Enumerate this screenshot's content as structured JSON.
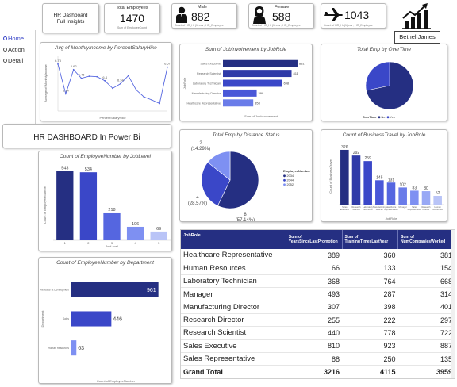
{
  "nav": {
    "items": [
      "Home",
      "Action",
      "Detail"
    ]
  },
  "header": {
    "title_card": {
      "line1": "HR  Dashboard",
      "line2": "Full Insights"
    },
    "total": {
      "label": "Total Employees",
      "value": "1470",
      "caption": "Sum of EmployeeCount"
    },
    "male": {
      "label": "Male",
      "value": "882",
      "caption": "Count of HR_Hr (1).csv ; HR_Employee"
    },
    "female": {
      "label": "Female",
      "value": "588",
      "caption": "Count of HR_Hr (1).csv ; HR_Employee"
    },
    "travel": {
      "value": "1043",
      "caption": "Count of HR_Hr (1).csv ; HR_Employee"
    },
    "author": "Bethel James",
    "banner": "HR  DASHBOARD In Power Bi"
  },
  "colors": {
    "navy": "#252f82",
    "blue": "#3a47c8",
    "mid": "#5566e0",
    "light": "#7e90f2",
    "pale": "#b9c4f7",
    "table_header": "#252f82"
  },
  "chart_data": [
    {
      "id": "income",
      "type": "line",
      "title": "Avg of MonthlyIncome by PercentSalaryHike",
      "xlabel": "PercentSalaryHike",
      "ylabel": "Average of MonthlyIncome",
      "x": [
        11,
        12,
        13,
        14,
        15,
        16,
        17,
        18,
        19,
        20,
        21,
        22,
        23,
        24,
        25
      ],
      "values": [
        6.73,
        6.14,
        6.62,
        6.45,
        6.49,
        6.48,
        6.4,
        6.25,
        6.34,
        6.5,
        6.22,
        6.08,
        6.02,
        5.95,
        6.67
      ],
      "data_labels": [
        "6.73",
        "6.14",
        "6.62",
        "6.45",
        "",
        "",
        "6.4",
        "",
        "6.34",
        "",
        "",
        "",
        "",
        "",
        "6.67"
      ]
    },
    {
      "id": "involvement",
      "type": "bar",
      "orientation": "horizontal",
      "title": "Sum of JobInvolvement by JobRole",
      "xlabel": "Sum of JobInvolvement",
      "ylabel": "JobRole",
      "categories": [
        "Sales Executive",
        "Research Scientist",
        "Laboratory Technician",
        "Manufacturing Director",
        "Healthcare Representative"
      ],
      "values": [
        881,
        811,
        698,
        399,
        358
      ],
      "data_labels": [
        "881",
        "811",
        "698",
        "399",
        "358"
      ]
    },
    {
      "id": "overtime",
      "type": "pie",
      "title": "Total Emp by OverTime",
      "legend_title": "OverTime",
      "legend": [
        "No",
        "Yes"
      ],
      "values": [
        1054,
        416
      ]
    },
    {
      "id": "distance",
      "type": "pie",
      "title": "Total Emp by Distance Status",
      "legend_title": "EmployeeNumber",
      "legend": [
        "2034",
        "2044",
        "2052"
      ],
      "values": [
        8,
        4,
        2
      ],
      "data_labels": [
        "8\n(57.14%)",
        "4\n(28.57%)",
        "2\n(14.29%)"
      ]
    },
    {
      "id": "travel",
      "type": "bar",
      "title": "Count of BusinessTravel by JobRole",
      "xlabel": "JobRole",
      "ylabel": "Count of BusinessTravel",
      "categories": [
        "Sales Executive",
        "Research Scientist",
        "Laboratory Technician",
        "Manufacturing Director",
        "Healthcare Representative",
        "Manager",
        "Sales Representative",
        "Research Director",
        "Human Resources"
      ],
      "values": [
        326,
        292,
        259,
        145,
        131,
        102,
        83,
        80,
        52
      ],
      "data_labels": [
        "326",
        "292",
        "259",
        "145",
        "131",
        "102",
        "83",
        "80",
        "52"
      ]
    },
    {
      "id": "joblevel",
      "type": "bar",
      "title": "Count of EmployeeNumber by JobLevel",
      "xlabel": "JobLevel",
      "ylabel": "Count of EmployeeNumber",
      "categories": [
        "1",
        "2",
        "3",
        "4",
        "5"
      ],
      "values": [
        543,
        534,
        218,
        106,
        69
      ],
      "data_labels": [
        "543",
        "534",
        "218",
        "106",
        "69"
      ]
    },
    {
      "id": "department",
      "type": "bar",
      "orientation": "horizontal",
      "title": "Count of EmployeeNumber by Department",
      "xlabel": "Count of EmployeeNumber",
      "ylabel": "Department",
      "categories": [
        "Research & Development",
        "Sales",
        "Human Resources"
      ],
      "values": [
        961,
        446,
        63
      ],
      "data_labels": [
        "961",
        "446",
        "63"
      ]
    },
    {
      "id": "table",
      "type": "table",
      "columns": [
        "JobRole",
        "Sum of YearsSinceLastPromotion",
        "Sum of TrainingTimesLastYear",
        "Sum of NumCompaniesWorked"
      ],
      "rows": [
        [
          "Healthcare Representative",
          "389",
          "360",
          "381"
        ],
        [
          "Human Resources",
          "66",
          "133",
          "154"
        ],
        [
          "Laboratory Technician",
          "368",
          "764",
          "668"
        ],
        [
          "Manager",
          "493",
          "287",
          "314"
        ],
        [
          "Manufacturing Director",
          "307",
          "398",
          "401"
        ],
        [
          "Research Director",
          "255",
          "222",
          "297"
        ],
        [
          "Research Scientist",
          "440",
          "778",
          "722"
        ],
        [
          "Sales Executive",
          "810",
          "923",
          "887"
        ],
        [
          "Sales Representative",
          "88",
          "250",
          "135"
        ]
      ],
      "total": [
        "Grand Total",
        "3216",
        "4115",
        "3959"
      ]
    }
  ]
}
